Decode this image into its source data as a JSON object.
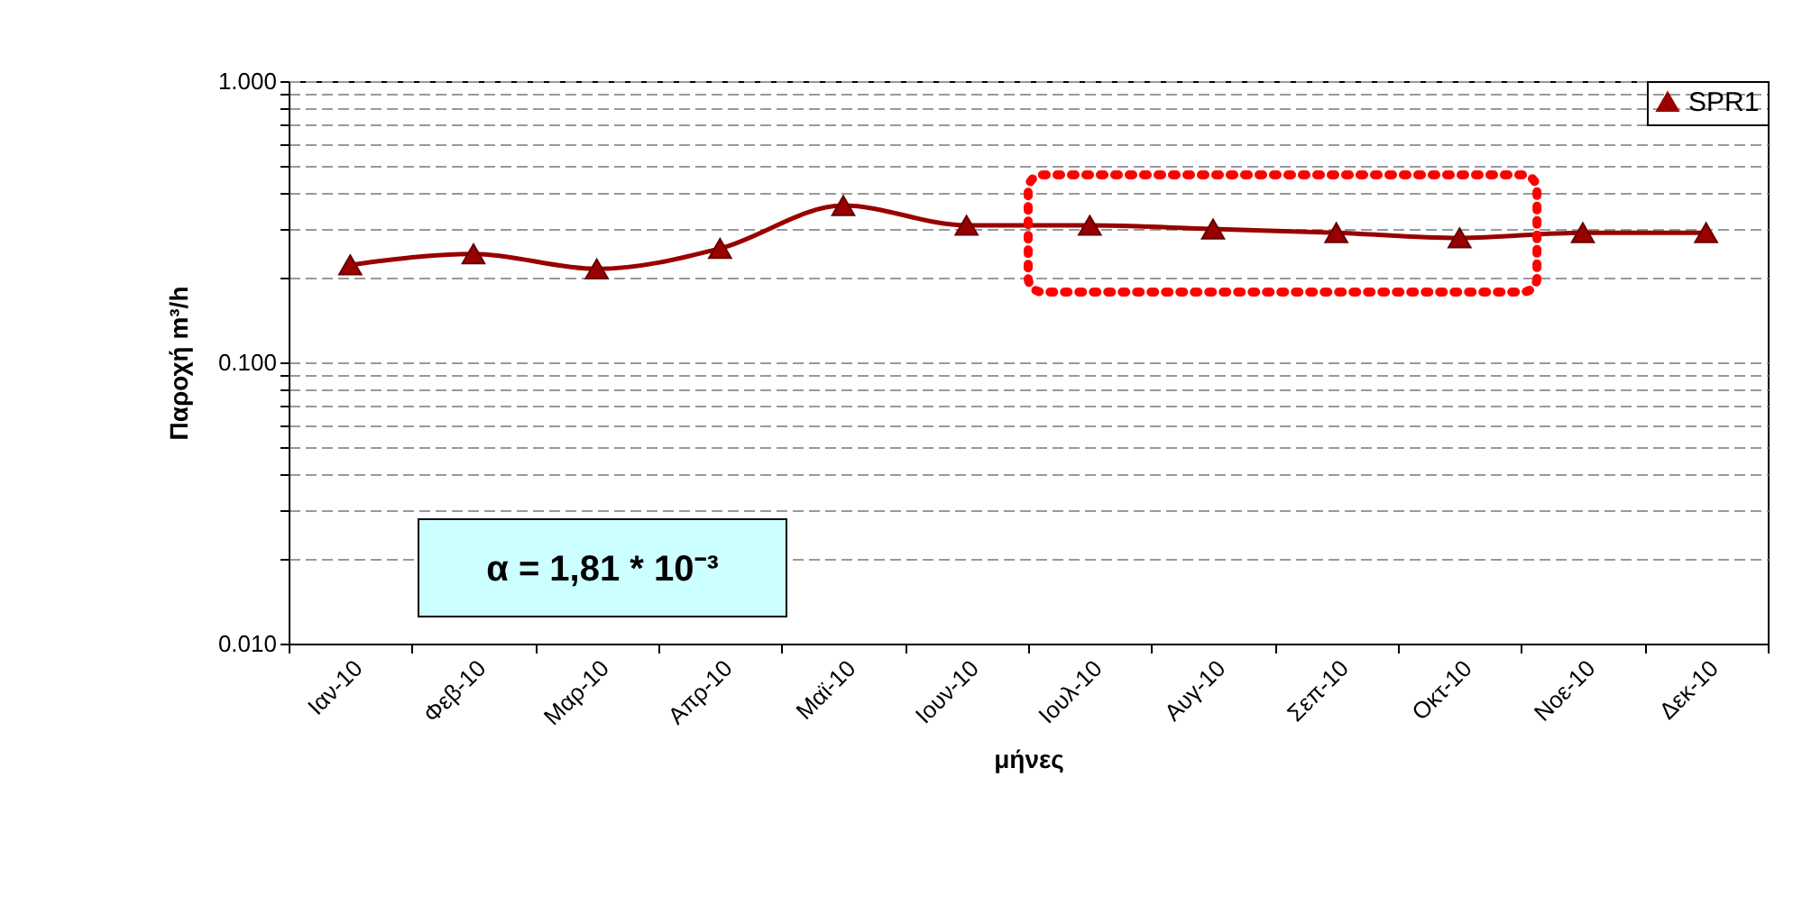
{
  "chart_data": {
    "type": "line",
    "xlabel": "μήνες",
    "ylabel": "Παροχή m³/h",
    "categories": [
      "Ιαν-10",
      "Φεβ-10",
      "Μαρ-10",
      "Απρ-10",
      "Μαϊ-10",
      "Ιουν-10",
      "Ιουλ-10",
      "Αυγ-10",
      "Σεπ-10",
      "Οκτ-10",
      "Νοε-10",
      "Δεκ-10"
    ],
    "series": [
      {
        "name": "SPR1",
        "color": "#990000",
        "values": [
          0.222,
          0.243,
          0.215,
          0.254,
          0.361,
          0.307,
          0.307,
          0.298,
          0.289,
          0.277,
          0.289,
          0.289
        ]
      }
    ],
    "log": true,
    "ylim": [
      0.01,
      1
    ],
    "yticks": [
      {
        "value": 0.01,
        "label": "0.010"
      },
      {
        "value": 0.02,
        "label": null
      },
      {
        "value": 0.03,
        "label": null
      },
      {
        "value": 0.04,
        "label": null
      },
      {
        "value": 0.05,
        "label": null
      },
      {
        "value": 0.06,
        "label": null
      },
      {
        "value": 0.07,
        "label": null
      },
      {
        "value": 0.08,
        "label": null
      },
      {
        "value": 0.09,
        "label": null
      },
      {
        "value": 0.1,
        "label": "0.100"
      },
      {
        "value": 0.2,
        "label": null
      },
      {
        "value": 0.3,
        "label": null
      },
      {
        "value": 0.4,
        "label": null
      },
      {
        "value": 0.5,
        "label": null
      },
      {
        "value": 0.6,
        "label": null
      },
      {
        "value": 0.7,
        "label": null
      },
      {
        "value": 0.8,
        "label": null
      },
      {
        "value": 0.9,
        "label": null
      },
      {
        "value": 1,
        "label": "1.000"
      }
    ],
    "grid": "y",
    "legend": "top right",
    "marker": "triangle",
    "line_style": "solid",
    "annotations": [
      "α = 1,81 * 10⁻³"
    ]
  }
}
